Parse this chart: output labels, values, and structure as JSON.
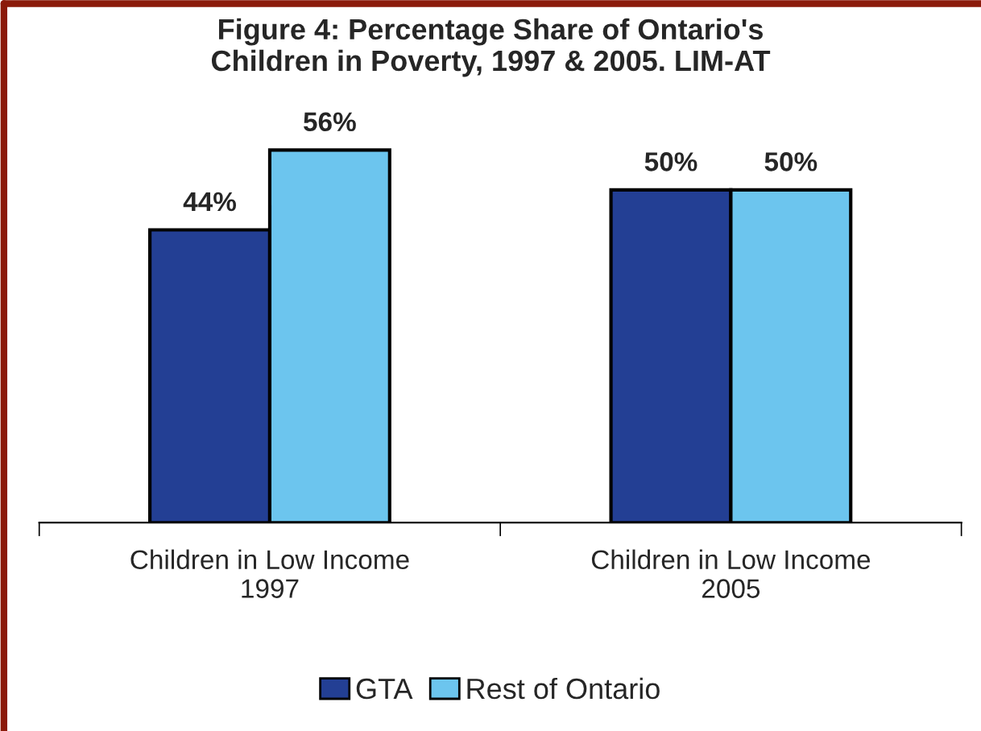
{
  "chart_data": {
    "type": "bar",
    "title": "Figure 4: Percentage Share of Ontario's\nChildren in Poverty, 1997 & 2005. LIM-AT",
    "categories": [
      "Children in Low Income\n1997",
      "Children in Low Income\n2005"
    ],
    "series": [
      {
        "name": "GTA",
        "color": "#233f94",
        "values": [
          44,
          50
        ],
        "value_labels": [
          "44%",
          "50%"
        ]
      },
      {
        "name": "Rest of Ontario",
        "color": "#6cc5ee",
        "values": [
          56,
          50
        ],
        "value_labels": [
          "56%",
          "50%"
        ]
      }
    ],
    "legend": "bottom",
    "grid": false
  }
}
